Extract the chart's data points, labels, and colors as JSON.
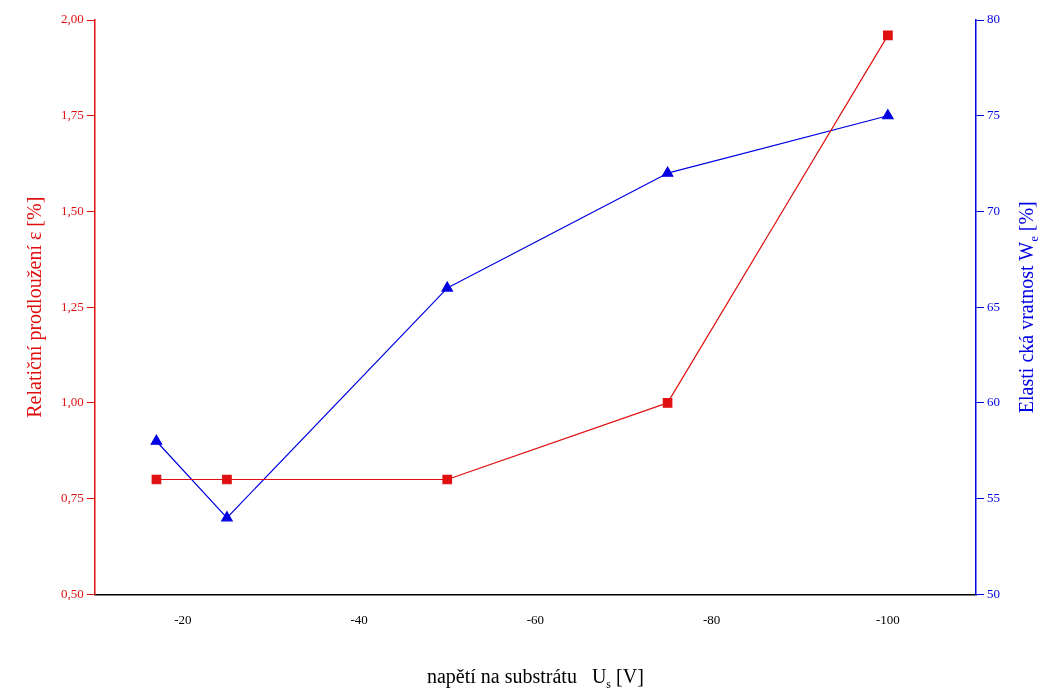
{
  "chart_data": {
    "type": "line",
    "xlabel": "napětí na substrátu   U$_{s}$ [V]",
    "ylabel": "Relatiční prodloužení ε [%]",
    "y2label": "Elasti cká vratnost W$_{e}$ [%]",
    "x": [
      -17,
      -25,
      -50,
      -75,
      -100
    ],
    "xlim": [
      -10,
      -110
    ],
    "xticks": [
      -20,
      -40,
      -60,
      -80,
      -100
    ],
    "ylim": [
      0.5,
      2.0
    ],
    "yticks": [
      {
        "value": 0.5,
        "label": "0,50"
      },
      {
        "value": 0.75,
        "label": "0,75"
      },
      {
        "value": 1.0,
        "label": "1,00"
      },
      {
        "value": 1.25,
        "label": "1,25"
      },
      {
        "value": 1.5,
        "label": "1,50"
      },
      {
        "value": 1.75,
        "label": "1,75"
      },
      {
        "value": 2.0,
        "label": "2,00"
      }
    ],
    "y2lim": [
      50,
      80
    ],
    "y2ticks": [
      50,
      55,
      60,
      65,
      70,
      75,
      80
    ],
    "series": [
      {
        "color": "#e01010",
        "values": [
          0.8,
          0.8,
          0.8,
          1.0,
          1.96
        ],
        "marker": "square"
      },
      {
        "color": "#0000e0",
        "values": [
          58,
          54,
          66,
          72,
          75
        ],
        "axis": "y2",
        "marker": "triangle"
      }
    ],
    "grid": false,
    "legend": false
  }
}
